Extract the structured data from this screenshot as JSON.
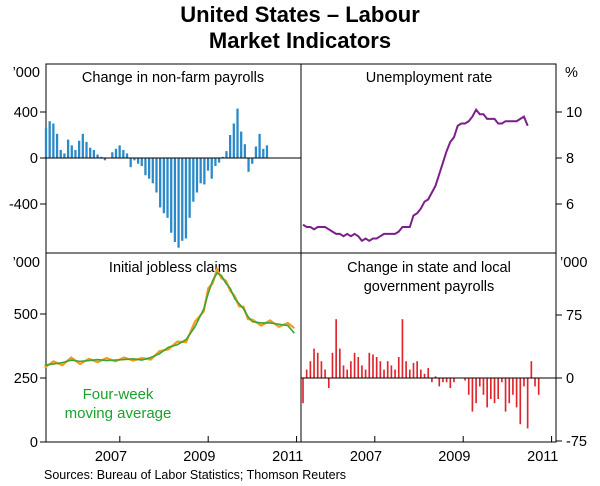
{
  "title_line1": "United States – Labour",
  "title_line2": "Market Indicators",
  "source": "Sources: Bureau of Labor Statistics; Thomson Reuters",
  "colors": {
    "payrolls": "#2a8ac9",
    "unemployment": "#7b1f8a",
    "claims_weekly": "#f39a1d",
    "claims_avg": "#3aa535",
    "state_local": "#e0242c"
  },
  "chart_data": [
    {
      "type": "bar",
      "title": "Change in non-farm payrolls",
      "unit": "’000",
      "yticks": [
        "400",
        "0",
        "-400"
      ],
      "ylim": [
        -800,
        450
      ],
      "x_start": 2005.33,
      "x_step_months": 1,
      "values": [
        260,
        320,
        300,
        210,
        70,
        40,
        160,
        110,
        70,
        150,
        210,
        140,
        90,
        70,
        30,
        10,
        -20,
        0,
        50,
        80,
        110,
        70,
        40,
        -80,
        -20,
        -50,
        -70,
        -150,
        -180,
        -220,
        -300,
        -430,
        -480,
        -520,
        -650,
        -730,
        -780,
        -720,
        -700,
        -520,
        -380,
        -300,
        -220,
        -230,
        -110,
        -180,
        -70,
        -40,
        10,
        60,
        200,
        300,
        430,
        230,
        120,
        -120,
        -50,
        100,
        210,
        80,
        110
      ]
    },
    {
      "type": "line",
      "title": "Unemployment rate",
      "unit": "%",
      "yticks": [
        "10",
        "8",
        "6"
      ],
      "ylim": [
        4.3,
        11.0
      ],
      "x_start": 2005.33,
      "x_step_months": 1,
      "values": [
        5.1,
        5.0,
        5.0,
        4.9,
        5.0,
        5.0,
        5.0,
        4.9,
        4.8,
        4.7,
        4.7,
        4.6,
        4.7,
        4.6,
        4.7,
        4.6,
        4.4,
        4.5,
        4.4,
        4.5,
        4.5,
        4.6,
        4.7,
        4.7,
        4.7,
        4.7,
        4.8,
        5.0,
        5.0,
        5.0,
        5.5,
        5.6,
        5.8,
        6.1,
        6.2,
        6.5,
        6.8,
        7.3,
        7.8,
        8.3,
        8.7,
        8.9,
        9.4,
        9.5,
        9.5,
        9.6,
        9.8,
        10.1,
        9.9,
        9.9,
        9.7,
        9.7,
        9.7,
        9.5,
        9.5,
        9.6,
        9.6,
        9.6,
        9.6,
        9.7,
        9.8,
        9.4
      ]
    },
    {
      "type": "line",
      "title": "Initial jobless claims",
      "unit": "’000",
      "yticks": [
        "500",
        "250",
        "0"
      ],
      "ylim": [
        0,
        700
      ],
      "xticks": [
        "2007",
        "2009",
        "2011"
      ],
      "annotation_line1": "Four-week",
      "annotation_line2": "moving average",
      "series": [
        {
          "name": "Four-week moving average",
          "x": [
            2005.3,
            2005.5,
            2005.7,
            2005.9,
            2006.1,
            2006.3,
            2006.5,
            2006.7,
            2006.9,
            2007.1,
            2007.3,
            2007.5,
            2007.7,
            2007.9,
            2008.1,
            2008.3,
            2008.5,
            2008.7,
            2008.9,
            2009.0,
            2009.1,
            2009.2,
            2009.3,
            2009.4,
            2009.5,
            2009.6,
            2009.7,
            2009.8,
            2009.9,
            2010.0,
            2010.2,
            2010.4,
            2010.6,
            2010.8,
            2010.95
          ],
          "values": [
            300,
            305,
            310,
            320,
            315,
            318,
            322,
            318,
            320,
            322,
            325,
            320,
            330,
            345,
            370,
            380,
            400,
            450,
            520,
            580,
            630,
            660,
            650,
            620,
            600,
            560,
            540,
            520,
            490,
            470,
            465,
            465,
            460,
            455,
            425
          ]
        },
        {
          "name": "Weekly",
          "x": [
            2005.3,
            2005.5,
            2005.7,
            2005.9,
            2006.1,
            2006.3,
            2006.5,
            2006.7,
            2006.9,
            2007.1,
            2007.3,
            2007.5,
            2007.7,
            2007.9,
            2008.1,
            2008.3,
            2008.5,
            2008.7,
            2008.9,
            2009.0,
            2009.1,
            2009.2,
            2009.3,
            2009.4,
            2009.5,
            2009.6,
            2009.7,
            2009.8,
            2009.9,
            2010.0,
            2010.2,
            2010.4,
            2010.6,
            2010.8,
            2010.95
          ],
          "values": [
            290,
            315,
            300,
            330,
            305,
            325,
            312,
            328,
            315,
            330,
            318,
            328,
            322,
            355,
            362,
            392,
            390,
            470,
            510,
            600,
            620,
            675,
            640,
            630,
            590,
            570,
            530,
            528,
            480,
            478,
            455,
            475,
            450,
            465,
            445
          ]
        }
      ]
    },
    {
      "type": "bar",
      "title_line1": "Change in state and local",
      "title_line2": "government payrolls",
      "unit": "’000",
      "yticks": [
        "75",
        "0",
        "-75"
      ],
      "ylim": [
        -75,
        100
      ],
      "xticks": [
        "2007",
        "2009",
        "2011"
      ],
      "x_start": 2005.33,
      "x_step_months": 1,
      "values": [
        -30,
        10,
        20,
        35,
        30,
        20,
        10,
        -12,
        30,
        70,
        35,
        15,
        10,
        20,
        30,
        25,
        15,
        10,
        30,
        28,
        25,
        20,
        10,
        20,
        15,
        10,
        25,
        70,
        20,
        10,
        18,
        20,
        10,
        5,
        12,
        -5,
        2,
        -10,
        -5,
        -5,
        -12,
        -5,
        0,
        0,
        -3,
        -20,
        -40,
        -30,
        -10,
        -20,
        -35,
        -25,
        -30,
        -25,
        -5,
        -40,
        -30,
        -20,
        -35,
        -55,
        -10,
        -60,
        20,
        -10,
        -20
      ]
    }
  ]
}
